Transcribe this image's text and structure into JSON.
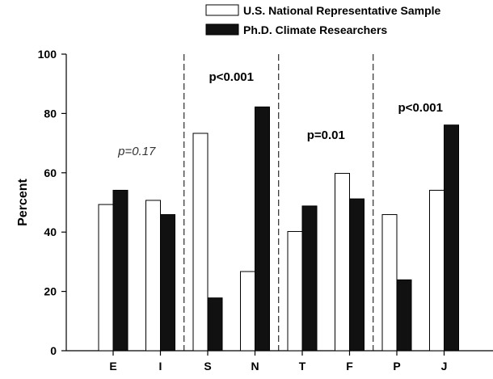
{
  "chart_data": {
    "type": "bar",
    "categories": [
      "E",
      "I",
      "S",
      "N",
      "T",
      "F",
      "P",
      "J"
    ],
    "series": [
      {
        "name": "U.S. National Representative Sample",
        "values": [
          49.3,
          50.7,
          73.3,
          26.7,
          40.2,
          59.8,
          45.9,
          54.1
        ],
        "color": "#ffffff"
      },
      {
        "name": "Ph.D. Climate Researchers",
        "values": [
          54.1,
          45.9,
          17.8,
          82.2,
          48.8,
          51.2,
          23.9,
          76.1
        ],
        "color": "#111111"
      }
    ],
    "xlabel": "",
    "ylabel": "Percent",
    "ylim": [
      0,
      100
    ],
    "yticks": [
      0,
      20,
      40,
      60,
      80,
      100
    ],
    "grid": false,
    "legend_placement": "top-right",
    "group_separators_after": [
      "I",
      "N",
      "F"
    ],
    "annotations": [
      {
        "text": "p=0.17",
        "group": [
          "E",
          "I"
        ],
        "style": "italic"
      },
      {
        "text": "p<0.001",
        "group": [
          "S",
          "N"
        ],
        "style": "bold"
      },
      {
        "text": "p=0.01",
        "group": [
          "T",
          "F"
        ],
        "style": "bold"
      },
      {
        "text": "p<0.001",
        "group": [
          "P",
          "J"
        ],
        "style": "bold"
      }
    ]
  }
}
